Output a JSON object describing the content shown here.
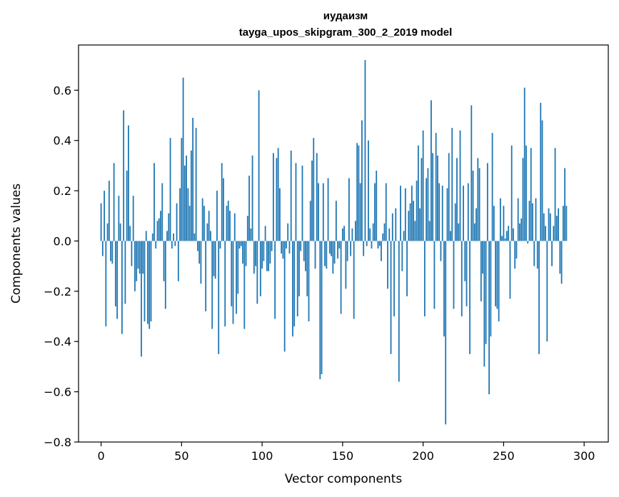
{
  "chart_data": {
    "type": "bar",
    "title": "иудаизм",
    "subtitle": "tayga_upos_skipgram_300_2_2019 model",
    "xlabel": "Vector components",
    "ylabel": "Components values",
    "xlim": [
      -14,
      315
    ],
    "ylim": [
      -0.8,
      0.78
    ],
    "xticks": [
      0,
      50,
      100,
      150,
      200,
      250,
      300
    ],
    "xtick_labels": [
      "0",
      "50",
      "100",
      "150",
      "200",
      "250",
      "300"
    ],
    "yticks": [
      -0.8,
      -0.6,
      -0.4,
      -0.2,
      0.0,
      0.2,
      0.4,
      0.6
    ],
    "ytick_labels": [
      "−0.8",
      "−0.6",
      "−0.4",
      "−0.2",
      "0.0",
      "0.2",
      "0.4",
      "0.6"
    ],
    "bar_color": "#1f77b4",
    "x": "0..299",
    "values": [
      0.15,
      -0.06,
      0.2,
      -0.34,
      0.07,
      0.24,
      -0.08,
      -0.09,
      0.31,
      -0.26,
      -0.31,
      0.18,
      0.07,
      -0.37,
      0.52,
      -0.25,
      0.28,
      0.46,
      0.06,
      -0.1,
      0.18,
      -0.2,
      -0.16,
      -0.11,
      -0.13,
      -0.46,
      -0.13,
      -0.32,
      0.04,
      -0.33,
      -0.35,
      -0.32,
      0.03,
      0.31,
      -0.03,
      0.08,
      0.09,
      0.12,
      0.23,
      -0.16,
      -0.27,
      0.04,
      0.11,
      0.41,
      -0.03,
      0.03,
      -0.02,
      0.15,
      -0.16,
      0.21,
      0.41,
      0.65,
      0.3,
      0.34,
      0.21,
      0.14,
      0.36,
      0.49,
      0.03,
      0.45,
      -0.04,
      -0.09,
      -0.17,
      0.17,
      0.14,
      -0.28,
      0.07,
      0.12,
      0.04,
      -0.35,
      -0.14,
      -0.15,
      0.2,
      -0.45,
      -0.03,
      0.31,
      0.25,
      -0.34,
      0.14,
      0.16,
      0.12,
      -0.26,
      -0.33,
      0.11,
      -0.29,
      -0.21,
      -0.03,
      -0.02,
      -0.09,
      -0.35,
      -0.1,
      0.1,
      0.26,
      0.05,
      0.34,
      -0.13,
      -0.1,
      -0.25,
      0.6,
      -0.22,
      -0.11,
      -0.08,
      0.06,
      -0.12,
      -0.12,
      -0.09,
      -0.04,
      0.35,
      -0.31,
      0.33,
      0.37,
      0.21,
      -0.05,
      -0.07,
      -0.44,
      -0.03,
      0.07,
      -0.05,
      0.36,
      -0.38,
      -0.34,
      0.31,
      -0.3,
      -0.22,
      -0.04,
      0.3,
      -0.08,
      -0.12,
      -0.22,
      -0.32,
      0.16,
      0.32,
      0.41,
      -0.11,
      0.35,
      0.23,
      -0.55,
      -0.53,
      0.23,
      -0.1,
      -0.11,
      0.25,
      -0.05,
      -0.06,
      -0.13,
      -0.09,
      0.16,
      -0.07,
      -0.03,
      -0.29,
      0.05,
      0.06,
      -0.19,
      -0.08,
      0.25,
      -0.06,
      0.05,
      -0.31,
      0.08,
      0.39,
      0.38,
      0.23,
      0.48,
      -0.06,
      0.72,
      -0.02,
      0.4,
      0.05,
      -0.03,
      0.07,
      0.23,
      0.28,
      -0.03,
      -0.02,
      -0.08,
      0.03,
      0.07,
      0.23,
      -0.19,
      0.05,
      -0.45,
      0.11,
      -0.3,
      0.13,
      0.0,
      -0.56,
      0.22,
      -0.12,
      0.04,
      0.21,
      -0.22,
      0.12,
      0.15,
      0.22,
      0.16,
      0.08,
      0.24,
      0.38,
      0.13,
      0.33,
      0.44,
      -0.3,
      0.25,
      0.29,
      0.08,
      0.56,
      0.35,
      -0.27,
      0.43,
      0.34,
      0.23,
      -0.08,
      0.22,
      -0.38,
      -0.73,
      0.21,
      0.35,
      0.04,
      0.45,
      -0.27,
      0.15,
      0.33,
      0.07,
      0.44,
      -0.3,
      0.22,
      -0.16,
      -0.26,
      0.23,
      -0.45,
      0.54,
      0.28,
      0.07,
      0.13,
      0.33,
      0.29,
      -0.24,
      -0.13,
      -0.5,
      -0.41,
      0.31,
      -0.61,
      -0.38,
      0.43,
      0.14,
      -0.26,
      -0.27,
      -0.32,
      0.17,
      0.02,
      0.14,
      0.01,
      0.04,
      0.06,
      -0.23,
      0.38,
      0.05,
      -0.11,
      -0.07,
      0.17,
      0.07,
      0.09,
      0.33,
      0.61,
      0.38,
      -0.01,
      0.16,
      0.37,
      0.15,
      -0.1,
      0.17,
      -0.11,
      -0.45,
      0.55,
      0.48,
      0.11,
      0.06,
      -0.4,
      0.13,
      0.11,
      -0.1,
      0.06,
      0.37,
      0.1,
      0.13,
      -0.13,
      -0.17,
      0.14,
      0.29,
      0.14
    ]
  }
}
